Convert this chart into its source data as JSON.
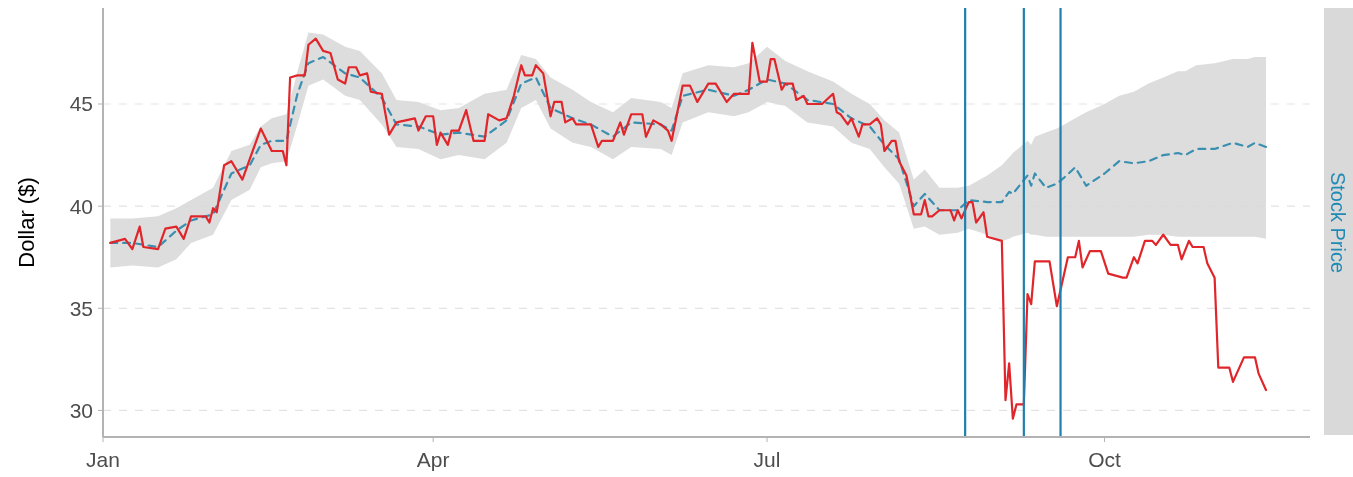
{
  "chart_data": {
    "type": "line",
    "ylabel": "Dollar ($)",
    "annotations": [
      "Stock Price"
    ],
    "xlim": [
      "--01-01",
      "--11-26"
    ],
    "xticks": [
      {
        "value": "--01-01",
        "label": "Jan"
      },
      {
        "value": "--04-01",
        "label": "Apr"
      },
      {
        "value": "--07-01",
        "label": "Jul"
      },
      {
        "value": "--10-01",
        "label": "Oct"
      }
    ],
    "ylim": [
      28.7,
      49.7
    ],
    "yticks": [
      30,
      35,
      40,
      45
    ],
    "grid": "y",
    "ref_lines": [
      {
        "axis": "x",
        "value": "--08-24",
        "color": "#1f7fae"
      },
      {
        "axis": "x",
        "value": "--09-09",
        "color": "#1f7fae"
      },
      {
        "axis": "x",
        "value": "--09-19",
        "color": "#1f7fae"
      }
    ],
    "series": [
      {
        "color": "#3a8fb0",
        "line_style": "dashed",
        "x": [
          "--01-03",
          "--01-09",
          "--01-16",
          "--01-21",
          "--01-25",
          "--01-31",
          "--02-05",
          "--02-10",
          "--02-13",
          "--02-16",
          "--02-20",
          "--02-23",
          "--02-26",
          "--03-02",
          "--03-08",
          "--03-12",
          "--03-18",
          "--03-22",
          "--03-28",
          "--04-03",
          "--04-08",
          "--04-15",
          "--04-21",
          "--04-25",
          "--04-29",
          "--05-03",
          "--05-09",
          "--05-14",
          "--05-20",
          "--05-25",
          "--06-02",
          "--06-05",
          "--06-08",
          "--06-15",
          "--06-22",
          "--06-26",
          "--07-01",
          "--07-06",
          "--07-12",
          "--07-19",
          "--07-24",
          "--07-29",
          "--08-02",
          "--08-06",
          "--08-10",
          "--08-13",
          "--08-17",
          "--08-22",
          "--08-25",
          "--08-30",
          "--09-03",
          "--09-05",
          "--09-06",
          "--09-10",
          "--09-11",
          "--09-12",
          "--09-15",
          "--09-18",
          "--09-20",
          "--09-23",
          "--09-26",
          "--10-01",
          "--10-05",
          "--10-09",
          "--10-13",
          "--10-17",
          "--10-21",
          "--10-23",
          "--10-26",
          "--10-31",
          "--11-05",
          "--11-09",
          "--11-11",
          "--11-14"
        ],
        "values": [
          38.2,
          38.2,
          38.0,
          38.8,
          39.3,
          39.6,
          41.6,
          42.0,
          43.0,
          43.2,
          43.2,
          45.5,
          47.0,
          47.3,
          46.5,
          46.3,
          45.3,
          44.0,
          43.9,
          43.5,
          43.6,
          43.4,
          44.2,
          46.0,
          46.3,
          44.8,
          44.3,
          44.0,
          43.4,
          44.1,
          44.0,
          43.7,
          45.4,
          45.7,
          45.4,
          45.7,
          46.2,
          46.0,
          45.2,
          45.0,
          44.3,
          43.9,
          43.0,
          42.3,
          40.0,
          40.6,
          39.8,
          39.8,
          40.3,
          40.2,
          40.2,
          40.7,
          40.6,
          41.5,
          41.0,
          41.6,
          40.9,
          41.1,
          41.4,
          41.9,
          41.0,
          41.6,
          42.2,
          42.1,
          42.2,
          42.5,
          42.6,
          42.5,
          42.8,
          42.8,
          43.1,
          42.9,
          43.1,
          42.9
        ],
        "lower": [
          37.0,
          37.1,
          37.0,
          37.4,
          38.2,
          38.6,
          40.3,
          40.8,
          41.9,
          42.1,
          42.2,
          44.0,
          45.9,
          46.2,
          45.4,
          45.2,
          44.0,
          42.9,
          42.8,
          42.3,
          42.5,
          42.3,
          43.1,
          44.8,
          45.2,
          43.8,
          43.1,
          42.9,
          42.3,
          42.9,
          42.8,
          42.5,
          44.1,
          44.6,
          44.4,
          44.6,
          45.1,
          44.9,
          44.1,
          43.9,
          43.1,
          42.8,
          41.9,
          41.1,
          38.9,
          39.0,
          38.6,
          38.7,
          38.9,
          38.6,
          38.3,
          38.4,
          38.5,
          38.7,
          38.6,
          38.6,
          38.5,
          38.5,
          38.5,
          38.5,
          38.5,
          38.5,
          38.5,
          38.5,
          38.6,
          38.6,
          38.5,
          38.5,
          38.5,
          38.5,
          38.5,
          38.5,
          38.5,
          38.4
        ],
        "upper": [
          39.4,
          39.4,
          39.5,
          39.9,
          40.3,
          40.9,
          42.7,
          43.0,
          43.9,
          44.3,
          44.5,
          46.6,
          48.5,
          48.4,
          47.8,
          47.6,
          46.5,
          45.2,
          45.1,
          44.7,
          44.8,
          45.5,
          45.7,
          47.4,
          47.2,
          46.3,
          45.7,
          45.1,
          44.6,
          45.3,
          45.1,
          44.8,
          46.5,
          46.9,
          46.8,
          47.0,
          47.8,
          47.1,
          46.6,
          46.1,
          45.5,
          45.0,
          44.2,
          43.6,
          41.3,
          41.8,
          40.9,
          40.9,
          41.0,
          41.5,
          42.0,
          42.4,
          42.6,
          43.2,
          43.0,
          43.4,
          43.6,
          43.8,
          44.0,
          44.3,
          44.6,
          45.0,
          45.4,
          45.6,
          46.0,
          46.3,
          46.6,
          46.6,
          46.9,
          47.0,
          47.2,
          47.2,
          47.3,
          47.3
        ]
      },
      {
        "color": "#e0262a",
        "line_style": "solid",
        "x": [
          "--01-03",
          "--01-07",
          "--01-09",
          "--01-11",
          "--01-12",
          "--01-16",
          "--01-18",
          "--01-21",
          "--01-23",
          "--01-25",
          "--01-29",
          "--01-30",
          "--01-31",
          "--02-01",
          "--02-03",
          "--02-05",
          "--02-08",
          "--02-10",
          "--02-13",
          "--02-16",
          "--02-19",
          "--02-20",
          "--02-21",
          "--02-23",
          "--02-25",
          "--02-26",
          "--02-28",
          "--03-02",
          "--03-04",
          "--03-06",
          "--03-08",
          "--03-09",
          "--03-11",
          "--03-12",
          "--03-14",
          "--03-15",
          "--03-18",
          "--03-20",
          "--03-22",
          "--03-27",
          "--03-28",
          "--03-30",
          "--04-01",
          "--04-02",
          "--04-03",
          "--04-05",
          "--04-06",
          "--04-08",
          "--04-10",
          "--04-12",
          "--04-15",
          "--04-16",
          "--04-19",
          "--04-21",
          "--04-23",
          "--04-25",
          "--04-26",
          "--04-28",
          "--04-29",
          "--05-01",
          "--05-03",
          "--05-04",
          "--05-06",
          "--05-07",
          "--05-09",
          "--05-10",
          "--05-14",
          "--05-16",
          "--05-17",
          "--05-20",
          "--05-22",
          "--05-23",
          "--05-25",
          "--05-28",
          "--05-29",
          "--05-31",
          "--06-02",
          "--06-04",
          "--06-05",
          "--06-08",
          "--06-10",
          "--06-12",
          "--06-15",
          "--06-17",
          "--06-20",
          "--06-22",
          "--06-26",
          "--06-27",
          "--06-29",
          "--07-01",
          "--07-02",
          "--07-03",
          "--07-05",
          "--07-06",
          "--07-08",
          "--07-09",
          "--07-11",
          "--07-12",
          "--07-16",
          "--07-19",
          "--07-20",
          "--07-21",
          "--07-23",
          "--07-24",
          "--07-26",
          "--07-27",
          "--07-29",
          "--07-31",
          "--08-01",
          "--08-02",
          "--08-04",
          "--08-05",
          "--08-06",
          "--08-08",
          "--08-10",
          "--08-12",
          "--08-13",
          "--08-14",
          "--08-15",
          "--08-17",
          "--08-20",
          "--08-21",
          "--08-22",
          "--08-23",
          "--08-25",
          "--08-26",
          "--08-27",
          "--08-29",
          "--08-30",
          "--09-03",
          "--09-04",
          "--09-05",
          "--09-06",
          "--09-07",
          "--09-09",
          "--09-10",
          "--09-11",
          "--09-12",
          "--09-16",
          "--09-18",
          "--09-21",
          "--09-23",
          "--09-24",
          "--09-25",
          "--09-27",
          "--09-30",
          "--10-02",
          "--10-06",
          "--10-07",
          "--10-09",
          "--10-10",
          "--10-12",
          "--10-14",
          "--10-15",
          "--10-17",
          "--10-19",
          "--10-21",
          "--10-22",
          "--10-24",
          "--10-25",
          "--10-28",
          "--10-29",
          "--10-31",
          "--11-01",
          "--11-04",
          "--11-05",
          "--11-08",
          "--11-11",
          "--11-12",
          "--11-14"
        ],
        "values": [
          38.2,
          38.4,
          37.9,
          39.0,
          38.0,
          37.9,
          38.9,
          39.0,
          38.4,
          39.5,
          39.5,
          39.2,
          39.9,
          39.7,
          42.0,
          42.2,
          41.3,
          42.3,
          43.8,
          42.7,
          42.7,
          42.0,
          46.3,
          46.4,
          46.4,
          47.9,
          48.2,
          47.6,
          47.5,
          46.2,
          46.0,
          46.8,
          46.8,
          46.4,
          46.5,
          45.6,
          45.5,
          43.5,
          44.1,
          44.3,
          43.7,
          44.4,
          44.4,
          43.0,
          43.6,
          43.0,
          43.7,
          43.7,
          44.7,
          43.2,
          43.2,
          44.5,
          44.2,
          44.3,
          45.4,
          46.9,
          46.4,
          46.4,
          46.9,
          46.5,
          44.4,
          45.1,
          45.1,
          44.1,
          44.3,
          44.0,
          44.0,
          42.9,
          43.2,
          43.2,
          44.1,
          43.5,
          44.5,
          44.5,
          43.4,
          44.2,
          44.0,
          43.7,
          43.2,
          45.9,
          45.9,
          45.1,
          46.0,
          46.0,
          45.1,
          45.5,
          45.5,
          48.0,
          46.1,
          46.1,
          47.2,
          47.2,
          45.7,
          46.0,
          46.0,
          45.2,
          45.4,
          45.0,
          45.0,
          45.5,
          44.6,
          44.5,
          44.0,
          44.3,
          43.4,
          44.0,
          44.0,
          44.3,
          44.0,
          42.7,
          43.2,
          43.2,
          42.2,
          41.5,
          39.6,
          39.6,
          40.3,
          39.5,
          39.5,
          39.8,
          39.8,
          39.3,
          39.8,
          39.4,
          40.2,
          40.2,
          39.2,
          39.7,
          38.5,
          38.3,
          30.5,
          32.3,
          29.6,
          30.3,
          30.3,
          35.7,
          35.2,
          37.3,
          37.3,
          35.1,
          37.5,
          37.5,
          38.3,
          37.0,
          37.8,
          37.8,
          36.7,
          36.5,
          36.5,
          37.5,
          37.2,
          38.3,
          38.3,
          38.1,
          38.6,
          38.1,
          38.1,
          37.4,
          38.3,
          38.0,
          38.0,
          37.2,
          36.5,
          32.1,
          32.1,
          31.4,
          32.6,
          32.6,
          31.8,
          31.0
        ]
      }
    ]
  }
}
